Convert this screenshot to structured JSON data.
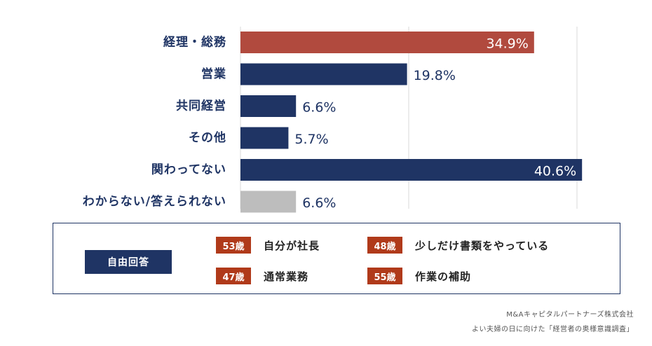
{
  "chart_data": {
    "type": "bar",
    "orientation": "horizontal",
    "categories": [
      "経理・総務",
      "営業",
      "共同経営",
      "その他",
      "関わってない",
      "わからない/答えられない"
    ],
    "values": [
      34.9,
      19.8,
      6.6,
      5.7,
      40.6,
      6.6
    ],
    "value_labels": [
      "34.9%",
      "19.8%",
      "6.6%",
      "5.7%",
      "40.6%",
      "6.6%"
    ],
    "bar_colors": [
      "#b14a3e",
      "#1f3464",
      "#1f3464",
      "#1f3464",
      "#1f3464",
      "#bdbdbd"
    ],
    "xlim": [
      0,
      40
    ],
    "grid": true
  },
  "free_response": {
    "title": "自由回答",
    "items": [
      {
        "age": "53歳",
        "text": "自分が社長"
      },
      {
        "age": "48歳",
        "text": "少しだけ書類をやっている"
      },
      {
        "age": "47歳",
        "text": "通常業務"
      },
      {
        "age": "55歳",
        "text": "作業の補助"
      }
    ]
  },
  "source": {
    "company": "M&Aキャピタルパートナーズ株式会社",
    "survey": "よい夫婦の日に向けた「経営者の奥様意識調査」"
  },
  "colors": {
    "navy": "#1f3464",
    "red": "#b14a3e",
    "gray": "#bdbdbd",
    "age_badge": "#b03a1a"
  }
}
